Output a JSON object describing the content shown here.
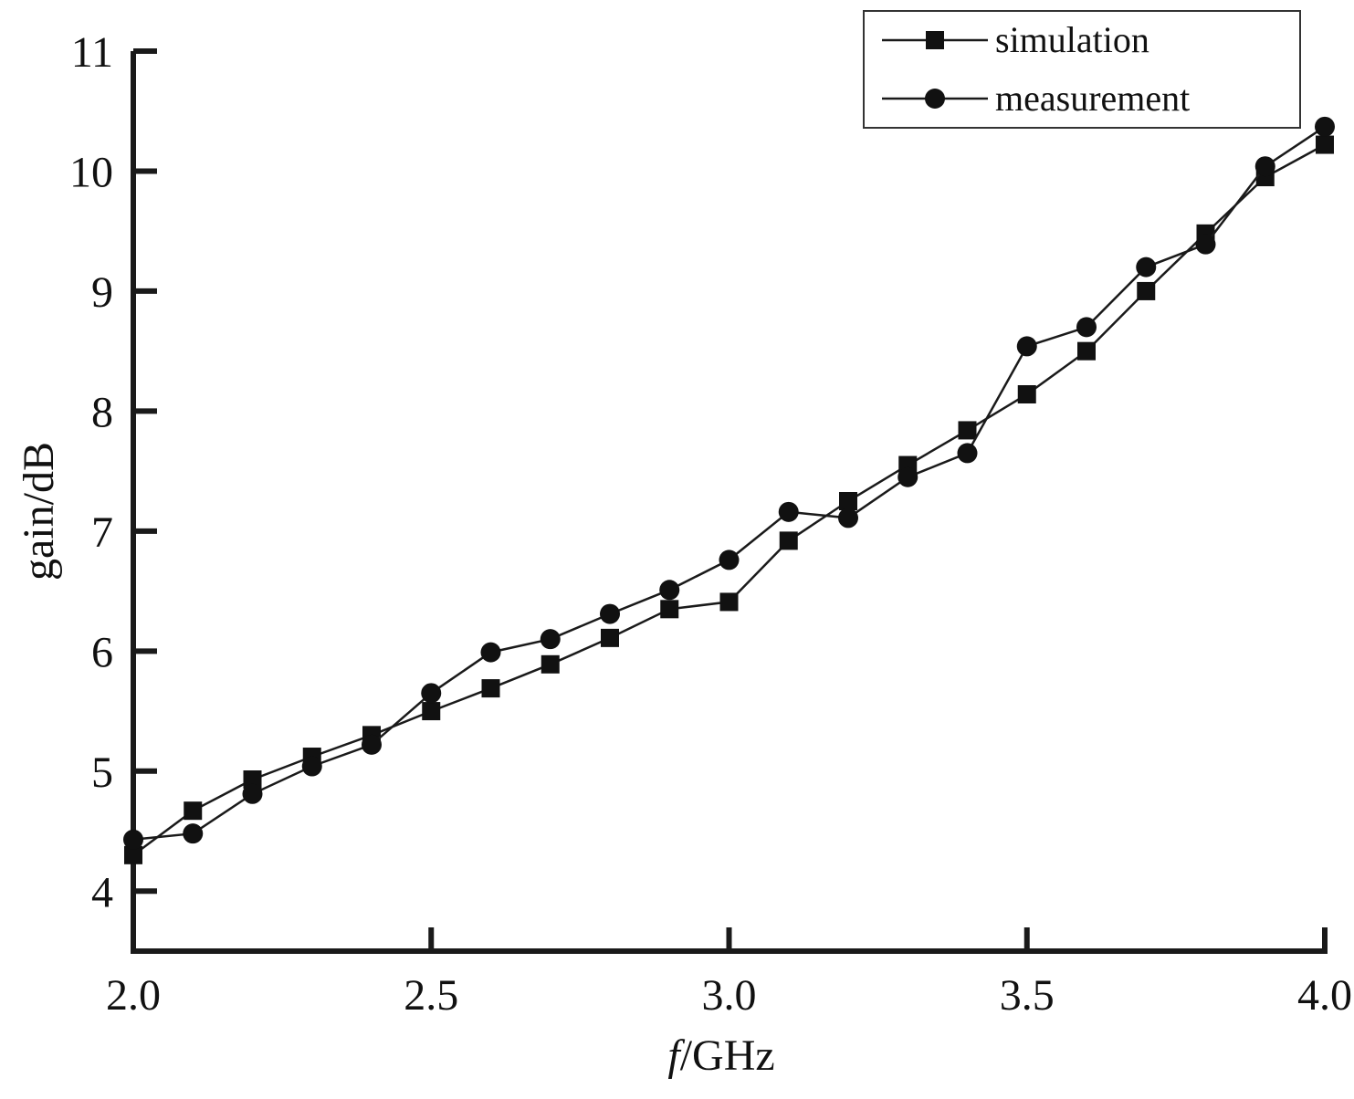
{
  "chart_data": {
    "type": "line",
    "title": "",
    "xlabel": {
      "italic": "f",
      "rest": "/GHz"
    },
    "ylabel": "gain/dB",
    "xlim": [
      2.0,
      4.0
    ],
    "ylim": [
      3.5,
      11
    ],
    "x_ticks": [
      "2.0",
      "2.5",
      "3.0",
      "3.5",
      "4.0"
    ],
    "y_ticks": [
      "4",
      "5",
      "6",
      "7",
      "8",
      "9",
      "10",
      "11"
    ],
    "grid": false,
    "legend_position": "top-right",
    "x": [
      2.0,
      2.1,
      2.2,
      2.3,
      2.4,
      2.5,
      2.6,
      2.7,
      2.8,
      2.9,
      3.0,
      3.1,
      3.2,
      3.3,
      3.4,
      3.5,
      3.6,
      3.7,
      3.8,
      3.9,
      4.0
    ],
    "series": [
      {
        "name": "simulation",
        "marker": "square",
        "values": [
          4.3,
          4.67,
          4.93,
          5.12,
          5.3,
          5.5,
          5.69,
          5.89,
          6.11,
          6.35,
          6.41,
          6.92,
          7.25,
          7.55,
          7.84,
          8.14,
          8.5,
          9.0,
          9.48,
          9.95,
          10.22
        ]
      },
      {
        "name": "measurement",
        "marker": "circle",
        "values": [
          4.43,
          4.48,
          4.81,
          5.04,
          5.22,
          5.65,
          5.99,
          6.1,
          6.31,
          6.51,
          6.76,
          7.16,
          7.11,
          7.45,
          7.65,
          8.54,
          8.7,
          9.2,
          9.39,
          10.04,
          10.37
        ]
      }
    ],
    "colors": {
      "line": "#1a1a1a",
      "marker": "#111111",
      "axis": "#1a1a1a"
    }
  }
}
